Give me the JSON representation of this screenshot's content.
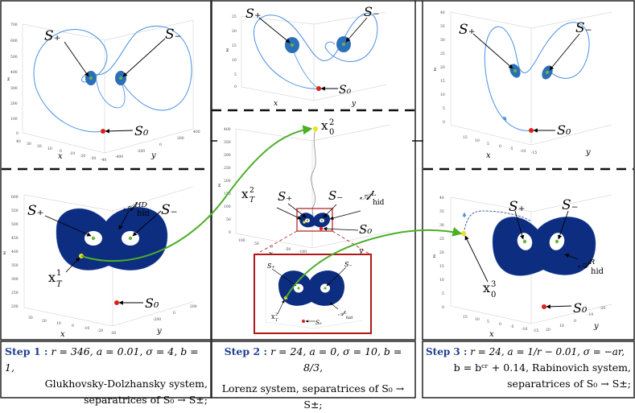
{
  "colors": {
    "attractor": "#0d2d80",
    "trajectory": "#4a90e2",
    "eq_fill": "#6fb33a",
    "green_arrow": "#4caf28",
    "s0": "#e0201a",
    "init_point": "#f0e020",
    "highlight_box": "#b01818",
    "step": "#1f3f8f"
  },
  "labels": {
    "s_plus": "S₊",
    "s_minus": "S₋",
    "s0": "S₀",
    "x": "x",
    "y": "y",
    "z": "z",
    "gd_attr": "𝒜ᴴᴰ",
    "gd_sub": "hid",
    "l_attr": "𝒜ᴸ",
    "r_attr": "𝒜ᴿ",
    "hid": "hid",
    "x_t1": "x",
    "x_t1_sup": "1",
    "x_t1_sub": "T",
    "x_t2": "x",
    "x_t2_sup": "2",
    "x_t2_sub": "T",
    "x_02": "x",
    "x_02_sup": "2",
    "x_02_sub": "0",
    "x_03": "x",
    "x_03_sup": "3",
    "x_03_sub": "0"
  },
  "captions": {
    "step1": {
      "label": "Step 1 :",
      "line1": "r = 346, a = 0.01, σ = 4, b = 1,",
      "line2": "Glukhovsky-Dolzhansky system,",
      "line3": "separatrices of S₀ → S±;"
    },
    "step2": {
      "label": "Step 2 :",
      "line1": "r = 24, a = 0, σ = 10, b = 8/3,",
      "line2": "Lorenz system, separatrices of S₀ → S±;"
    },
    "step3": {
      "label": "Step 3 :",
      "line1": "r = 24, a = 1/r − 0.01, σ = −ar,",
      "line2": "b = bᶜʳ + 0.14, Rabinovich system,",
      "line3": "separatrices of S₀ → S±;"
    }
  },
  "ticks": {
    "p1_z": [
      "700",
      "600",
      "500",
      "400",
      "300",
      "200",
      "100",
      "0"
    ],
    "p1_x": [
      "40",
      "30",
      "20",
      "10",
      "0",
      "-10",
      "-20",
      "-30",
      "-40"
    ],
    "p1_y": [
      "-400",
      "-200",
      "0",
      "200",
      "400"
    ],
    "p2_z": [
      "25",
      "20",
      "15",
      "10",
      "5",
      "0"
    ],
    "p3_z": [
      "40",
      "35",
      "30",
      "25",
      "20",
      "15",
      "10",
      "5",
      "0"
    ],
    "p3_x": [
      "15",
      "10",
      "5",
      "0",
      "-5",
      "-10",
      "-15"
    ],
    "p4_z": [
      "600",
      "550",
      "500",
      "450",
      "400",
      "350",
      "300",
      "250",
      "200"
    ],
    "p4_x": [
      "30",
      "20",
      "10",
      "0",
      "-10",
      "-20",
      "-30"
    ],
    "p4_y": [
      "-200",
      "0",
      "200"
    ],
    "p5_z": [
      "400",
      "350",
      "300",
      "250",
      "200",
      "150",
      "100",
      "50",
      "0"
    ],
    "p5_x": [
      "100",
      "50",
      "0",
      "-50",
      "-100"
    ],
    "p6_z": [
      "40",
      "35",
      "30",
      "25",
      "20",
      "15",
      "10",
      "5",
      "0"
    ],
    "p6_x": [
      "15",
      "10",
      "5",
      "0",
      "-5",
      "-10",
      "-15"
    ],
    "p6_y": [
      "-20",
      "-10",
      "0",
      "10",
      "20"
    ]
  }
}
